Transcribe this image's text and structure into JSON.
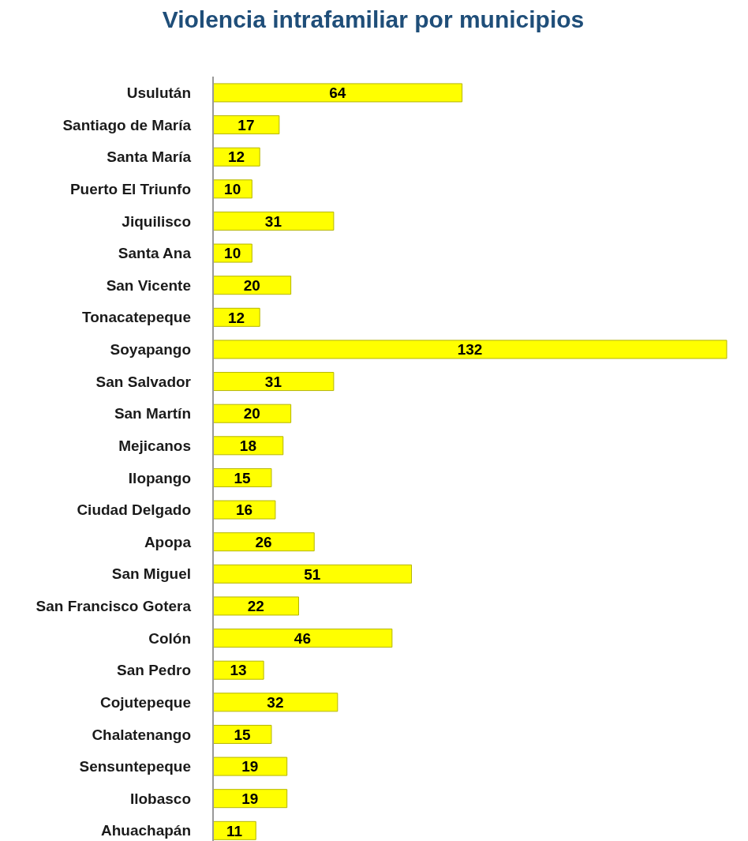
{
  "chart_data": {
    "type": "bar",
    "title": "Violencia intrafamiliar por municipios",
    "orientation": "horizontal",
    "categories": [
      "Usulután",
      "Santiago de María",
      "Santa María",
      "Puerto El Triunfo",
      "Jiquilisco",
      "Santa Ana",
      "San Vicente",
      "Tonacatepeque",
      "Soyapango",
      "San Salvador",
      "San Martín",
      "Mejicanos",
      "Ilopango",
      "Ciudad Delgado",
      "Apopa",
      "San Miguel",
      "San Francisco Gotera",
      "Colón",
      "San Pedro",
      "Cojutepeque",
      "Chalatenango",
      "Sensuntepeque",
      "Ilobasco",
      "Ahuachapán"
    ],
    "values": [
      64,
      17,
      12,
      10,
      31,
      10,
      20,
      12,
      132,
      31,
      20,
      18,
      15,
      16,
      26,
      51,
      22,
      46,
      13,
      32,
      15,
      19,
      19,
      11
    ],
    "color": "#ffff00",
    "data_labels": true
  }
}
